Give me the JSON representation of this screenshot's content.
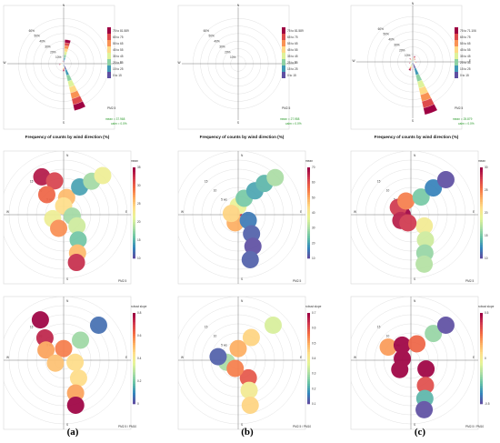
{
  "panel_labels": [
    "(a)",
    "(b)",
    "(c)"
  ],
  "colors": {
    "spectral": [
      "#5e4fa2",
      "#3288bd",
      "#66c2a5",
      "#abdda4",
      "#e6f598",
      "#fee08b",
      "#fdae61",
      "#f46d43",
      "#d53e4f",
      "#9e0142"
    ]
  },
  "chart_data": [
    {
      "type": "wind-rose",
      "panel": "a",
      "title": "Frequency of counts by wind direction (%)",
      "pct_labels": [
        "10%",
        "20%",
        "30%",
        "40%",
        "50%",
        "60%"
      ],
      "compass": [
        "N",
        "E",
        "S",
        "W"
      ],
      "legend_title": "PM2.5",
      "legend_bins": [
        "0 to 15",
        "15 to 25",
        "25 to 35",
        "35 to 45",
        "45 to 55",
        "55 to 65",
        "65 to 75",
        "75 to 81.589"
      ],
      "stats": [
        "mean = 37.968",
        "calm = 0.0%"
      ],
      "petals": [
        {
          "dir": 10,
          "total": 32
        },
        {
          "dir": 160,
          "total": 64
        },
        {
          "dir": 180,
          "total": 10
        },
        {
          "dir": 260,
          "total": 6
        },
        {
          "dir": 340,
          "total": 4
        }
      ]
    },
    {
      "type": "wind-rose",
      "panel": "b",
      "title": "Frequency of counts by wind direction (%)",
      "pct_labels": [
        "10%",
        "20%",
        "30%",
        "40%",
        "50%",
        "60%"
      ],
      "compass": [
        "N",
        "E",
        "S",
        "W"
      ],
      "legend_title": "PM2.5",
      "legend_bins": [
        "0 to 15",
        "15 to 25",
        "25 to 35",
        "35 to 45",
        "45 to 55",
        "55 to 65",
        "65 to 75",
        "75 to 81.589"
      ],
      "stats": [
        "mean = 27.958",
        "calm = 0.0%"
      ],
      "petals": []
    },
    {
      "type": "wind-rose",
      "panel": "c",
      "title": "Frequency of counts by wind direction (%)",
      "pct_labels": [
        "10%",
        "20%",
        "30%",
        "40%",
        "50%",
        "60%"
      ],
      "compass": [
        "N",
        "E",
        "S",
        "W"
      ],
      "legend_title": "PM2.5",
      "legend_bins": [
        "0 to 15",
        "15 to 25",
        "25 to 35",
        "35 to 45",
        "45 to 55",
        "55 to 65",
        "65 to 75",
        "75 to 71.106"
      ],
      "stats": [
        "mean = 25.879",
        "calm = 0.0%"
      ],
      "petals": [
        {
          "dir": 160,
          "total": 72
        },
        {
          "dir": 20,
          "total": 8
        },
        {
          "dir": 200,
          "total": 12
        },
        {
          "dir": 100,
          "total": 5
        },
        {
          "dir": 250,
          "total": 5
        },
        {
          "dir": 320,
          "total": 6
        },
        {
          "dir": 40,
          "total": 5
        }
      ]
    },
    {
      "type": "polar-heatmap",
      "panel": "a",
      "statistic": "mean",
      "legend_title": "mean",
      "legend_ticks": [
        "10",
        "15",
        "20",
        "25",
        "30",
        "35"
      ],
      "speed_labels": [
        "5 ws",
        "10",
        "15"
      ],
      "footer": "PM2.5",
      "hotspots": [
        {
          "dir": 330,
          "ws": 0.75,
          "v": 34
        },
        {
          "dir": 345,
          "ws": 0.6,
          "v": 32
        },
        {
          "dir": 320,
          "ws": 0.45,
          "v": 30
        },
        {
          "dir": 10,
          "ws": 0.3,
          "v": 26
        },
        {
          "dir": 0,
          "ws": 0.15,
          "v": 24
        },
        {
          "dir": 30,
          "ws": 0.55,
          "v": 14
        },
        {
          "dir": 40,
          "ws": 0.75,
          "v": 18
        },
        {
          "dir": 45,
          "ws": 0.95,
          "v": 22
        },
        {
          "dir": 100,
          "ws": 0.15,
          "v": 18
        },
        {
          "dir": 130,
          "ws": 0.3,
          "v": 20
        },
        {
          "dir": 150,
          "ws": 0.5,
          "v": 16
        },
        {
          "dir": 160,
          "ws": 0.7,
          "v": 26
        },
        {
          "dir": 165,
          "ws": 0.85,
          "v": 33
        },
        {
          "dir": 250,
          "ws": 0.2,
          "v": 22
        },
        {
          "dir": 200,
          "ws": 0.25,
          "v": 28
        }
      ]
    },
    {
      "type": "polar-heatmap",
      "panel": "b",
      "statistic": "mean",
      "legend_title": "mean",
      "legend_ticks": [
        "10",
        "20",
        "30",
        "40",
        "50",
        "60",
        "70"
      ],
      "speed_labels": [
        "5 ws",
        "10",
        "15"
      ],
      "footer": "PM2.5",
      "hotspots": [
        {
          "dir": 260,
          "ws": 0.08,
          "v": 65
        },
        {
          "dir": 200,
          "ws": 0.15,
          "v": 50
        },
        {
          "dir": 0,
          "ws": 0.15,
          "v": 38
        },
        {
          "dir": 20,
          "ws": 0.3,
          "v": 25
        },
        {
          "dir": 35,
          "ws": 0.5,
          "v": 20
        },
        {
          "dir": 40,
          "ws": 0.7,
          "v": 22
        },
        {
          "dir": 45,
          "ws": 0.9,
          "v": 30
        },
        {
          "dir": 120,
          "ws": 0.2,
          "v": 15
        },
        {
          "dir": 145,
          "ws": 0.4,
          "v": 12
        },
        {
          "dir": 155,
          "ws": 0.6,
          "v": 10
        },
        {
          "dir": 165,
          "ws": 0.8,
          "v": 12
        },
        {
          "dir": 280,
          "ws": 0.12,
          "v": 45
        }
      ]
    },
    {
      "type": "polar-heatmap",
      "panel": "c",
      "statistic": "mean",
      "legend_title": "mean",
      "legend_ticks": [
        "10",
        "15",
        "20",
        "25",
        "30"
      ],
      "speed_labels": [
        "5 ws",
        "10",
        "15"
      ],
      "footer": "PM2.5",
      "hotspots": [
        {
          "dir": 270,
          "ws": 0.15,
          "v": 31
        },
        {
          "dir": 300,
          "ws": 0.25,
          "v": 28
        },
        {
          "dir": 240,
          "ws": 0.2,
          "v": 29
        },
        {
          "dir": 340,
          "ws": 0.25,
          "v": 25
        },
        {
          "dir": 30,
          "ws": 0.35,
          "v": 15
        },
        {
          "dir": 40,
          "ws": 0.6,
          "v": 12
        },
        {
          "dir": 45,
          "ws": 0.85,
          "v": 6
        },
        {
          "dir": 130,
          "ws": 0.3,
          "v": 20
        },
        {
          "dir": 150,
          "ws": 0.5,
          "v": 18
        },
        {
          "dir": 160,
          "ws": 0.7,
          "v": 16
        },
        {
          "dir": 165,
          "ws": 0.88,
          "v": 17
        },
        {
          "dir": 200,
          "ws": 0.15,
          "v": 28
        }
      ]
    },
    {
      "type": "polar-heatmap",
      "panel": "a",
      "statistic": "robust slope",
      "legend_title": "robust slope",
      "legend_ticks": [
        "0",
        "0.2",
        "0.4",
        "0.6",
        "0.8"
      ],
      "speed_labels": [
        "5 ws",
        "10",
        "15"
      ],
      "footer": "PM2.5 / PM10",
      "hotspots": [
        {
          "dir": 330,
          "ws": 0.8,
          "v": 0.8
        },
        {
          "dir": 320,
          "ws": 0.5,
          "v": 0.75
        },
        {
          "dir": 300,
          "ws": 0.35,
          "v": 0.55
        },
        {
          "dir": 0,
          "ws": 0.2,
          "v": 0.6
        },
        {
          "dir": 40,
          "ws": 0.45,
          "v": 0.25
        },
        {
          "dir": 45,
          "ws": 0.85,
          "v": 0.05
        },
        {
          "dir": 100,
          "ws": 0.2,
          "v": 0.45
        },
        {
          "dir": 140,
          "ws": 0.4,
          "v": 0.45
        },
        {
          "dir": 160,
          "ws": 0.6,
          "v": 0.55
        },
        {
          "dir": 165,
          "ws": 0.8,
          "v": 0.9
        },
        {
          "dir": 250,
          "ws": 0.15,
          "v": 0.5
        }
      ]
    },
    {
      "type": "polar-heatmap",
      "panel": "b",
      "statistic": "robust slope",
      "legend_title": "robust slope",
      "legend_ticks": [
        "0.1",
        "0.2",
        "0.3",
        "0.4",
        "0.5",
        "0.6",
        "0.7"
      ],
      "speed_labels": [
        "5 ws",
        "10",
        "15"
      ],
      "footer": "PM2.5 / PM10",
      "hotspots": [
        {
          "dir": 260,
          "ws": 0.2,
          "v": 0.3
        },
        {
          "dir": 280,
          "ws": 0.35,
          "v": 0.12
        },
        {
          "dir": 0,
          "ws": 0.2,
          "v": 0.5
        },
        {
          "dir": 30,
          "ws": 0.45,
          "v": 0.45
        },
        {
          "dir": 45,
          "ws": 0.85,
          "v": 0.35
        },
        {
          "dir": 150,
          "ws": 0.35,
          "v": 0.6
        },
        {
          "dir": 160,
          "ws": 0.55,
          "v": 0.4
        },
        {
          "dir": 165,
          "ws": 0.8,
          "v": 0.45
        },
        {
          "dir": 200,
          "ws": 0.15,
          "v": 0.55
        }
      ]
    },
    {
      "type": "polar-heatmap",
      "panel": "c",
      "statistic": "robust slope",
      "legend_title": "robust slope",
      "legend_ticks": [
        "-0.5",
        "0",
        "0.5"
      ],
      "speed_labels": [
        "5 ws",
        "10",
        "15"
      ],
      "footer": "PM2.5 / PM10",
      "hotspots": [
        {
          "dir": 280,
          "ws": 0.15,
          "v": 0.75
        },
        {
          "dir": 300,
          "ws": 0.45,
          "v": 0.2
        },
        {
          "dir": 330,
          "ws": 0.3,
          "v": 0.65
        },
        {
          "dir": 20,
          "ws": 0.3,
          "v": 0.3
        },
        {
          "dir": 40,
          "ws": 0.6,
          "v": -0.2
        },
        {
          "dir": 45,
          "ws": 0.85,
          "v": -0.5
        },
        {
          "dir": 120,
          "ws": 0.3,
          "v": 0.6
        },
        {
          "dir": 150,
          "ws": 0.5,
          "v": 0.35
        },
        {
          "dir": 160,
          "ws": 0.7,
          "v": -0.3
        },
        {
          "dir": 165,
          "ws": 0.88,
          "v": -0.6
        },
        {
          "dir": 230,
          "ws": 0.25,
          "v": 0.5
        }
      ]
    }
  ]
}
